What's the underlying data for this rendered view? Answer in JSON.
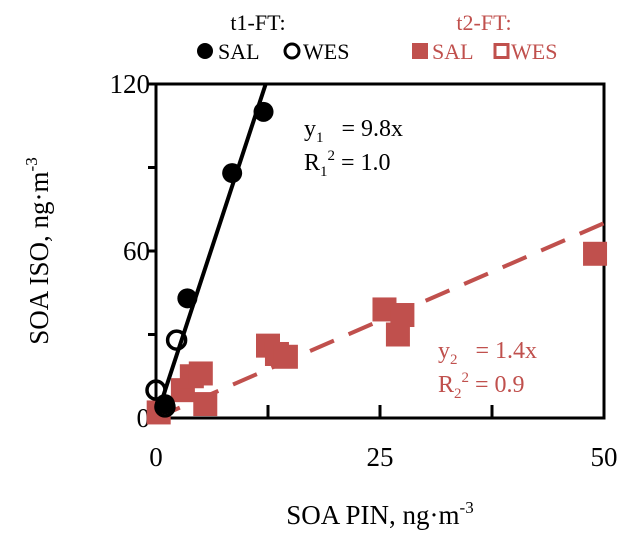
{
  "chart_data": {
    "type": "scatter",
    "xlabel": "SOA  PIN, ng·m",
    "xlabel_sup": "-3",
    "ylabel": "SOA  ISO, ng·m",
    "ylabel_sup": "-3",
    "xlim": [
      0,
      50
    ],
    "ylim": [
      0,
      120
    ],
    "x_ticks": [
      0,
      25,
      50
    ],
    "y_ticks": [
      0,
      60,
      120
    ],
    "x_tick_labels": [
      "0",
      "25",
      "50"
    ],
    "y_tick_labels": [
      "0",
      "60",
      "120"
    ],
    "grid": false,
    "legend": {
      "placement": "top",
      "groups": [
        {
          "title": "t1-FT:",
          "color": "#000000",
          "items": [
            "SAL",
            "WES"
          ]
        },
        {
          "title": "t2-FT:",
          "color": "#c0504d",
          "items": [
            "SAL",
            "WES"
          ]
        }
      ]
    },
    "series": [
      {
        "name": "t1-FT SAL",
        "color": "#000000",
        "marker": "filled-circle",
        "x": [
          1,
          3.5,
          8.5,
          12
        ],
        "y": [
          5,
          43,
          88,
          110
        ]
      },
      {
        "name": "t1-FT WES",
        "color": "#000000",
        "marker": "open-circle",
        "x": [
          0,
          1,
          2.3
        ],
        "y": [
          10,
          4,
          28
        ]
      },
      {
        "name": "t2-FT SAL",
        "color": "#c0504d",
        "marker": "filled-square",
        "x": [
          0.3,
          3,
          4,
          5,
          5.5,
          12.5,
          13.5,
          14.5,
          25.5,
          27,
          27.5,
          49
        ],
        "y": [
          2,
          10,
          15,
          16,
          5,
          26,
          23,
          22,
          39,
          30,
          37,
          59
        ]
      }
    ],
    "fits": [
      {
        "color": "#000000",
        "style": "solid",
        "slope": 9.8,
        "eq_var": "y",
        "eq_sub": "1",
        "eq_rhs": "= 9.8x",
        "r_var": "R",
        "r_sub": "1",
        "r_sup": "2",
        "r_rhs": "= 1.0"
      },
      {
        "color": "#c0504d",
        "style": "dashed",
        "slope": 1.4,
        "eq_var": "y",
        "eq_sub": "2",
        "eq_rhs": "= 1.4x",
        "r_var": "R",
        "r_sub": "2",
        "r_sup": "2",
        "r_rhs": "= 0.9"
      }
    ]
  }
}
